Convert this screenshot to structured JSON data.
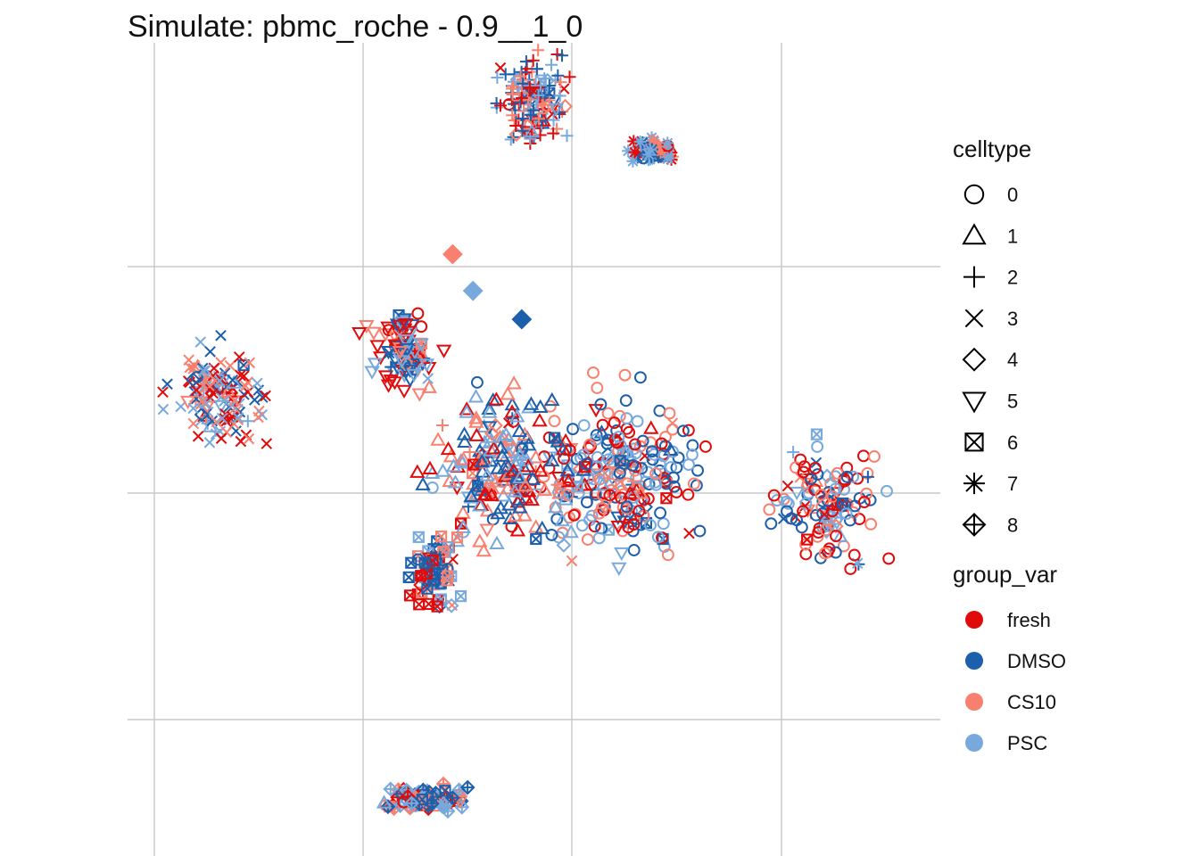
{
  "chart_data": {
    "type": "scatter",
    "title": "Simulate: pbmc_roche - 0.9__1_0",
    "xlabel": "",
    "ylabel": "",
    "grid": true,
    "axis_ticks_shown": false,
    "xlim": [
      0,
      10
    ],
    "ylim": [
      0,
      10
    ],
    "legend_placement": "right",
    "legends": [
      {
        "title": "celltype",
        "encoding": "shape",
        "entries": [
          {
            "label": "0",
            "shape": "circle"
          },
          {
            "label": "1",
            "shape": "triangle-up"
          },
          {
            "label": "2",
            "shape": "plus"
          },
          {
            "label": "3",
            "shape": "cross"
          },
          {
            "label": "4",
            "shape": "diamond"
          },
          {
            "label": "5",
            "shape": "triangle-down"
          },
          {
            "label": "6",
            "shape": "square-cross"
          },
          {
            "label": "7",
            "shape": "asterisk"
          },
          {
            "label": "8",
            "shape": "diamond-plus"
          }
        ]
      },
      {
        "title": "group_var",
        "encoding": "color",
        "entries": [
          {
            "label": "fresh",
            "color": "#E00B0B"
          },
          {
            "label": "DMSO",
            "color": "#1C5FAB"
          },
          {
            "label": "CS10",
            "color": "#F8806F"
          },
          {
            "label": "PSC",
            "color": "#78A9DC"
          }
        ]
      }
    ],
    "clusters": [
      {
        "celltype": "2",
        "center": [
          5.0,
          9.3
        ],
        "spread": [
          0.42,
          0.55
        ],
        "n": 150
      },
      {
        "celltype": "7",
        "center": [
          6.45,
          8.65
        ],
        "spread": [
          0.28,
          0.15
        ],
        "n": 55
      },
      {
        "celltype": "3",
        "center": [
          1.1,
          5.7
        ],
        "spread": [
          0.55,
          0.6
        ],
        "n": 130
      },
      {
        "celltype": "5",
        "center": [
          3.4,
          6.2
        ],
        "spread": [
          0.4,
          0.45
        ],
        "n": 100
      },
      {
        "celltype": "0",
        "center": [
          6.0,
          4.7
        ],
        "spread": [
          1.1,
          0.95
        ],
        "n": 260
      },
      {
        "celltype": "1",
        "center": [
          4.6,
          4.8
        ],
        "spread": [
          0.9,
          0.85
        ],
        "n": 180
      },
      {
        "celltype": "0",
        "center": [
          8.6,
          4.3
        ],
        "spread": [
          0.65,
          0.7
        ],
        "n": 120
      },
      {
        "celltype": "6",
        "center": [
          3.8,
          3.5
        ],
        "spread": [
          0.35,
          0.45
        ],
        "n": 70
      },
      {
        "celltype": "8",
        "center": [
          3.7,
          0.7
        ],
        "spread": [
          0.55,
          0.18
        ],
        "n": 80
      }
    ],
    "points": [
      {
        "x": 4.0,
        "y": 7.4,
        "celltype": "4",
        "group": "CS10"
      },
      {
        "x": 4.25,
        "y": 6.95,
        "celltype": "4",
        "group": "PSC"
      },
      {
        "x": 4.85,
        "y": 6.6,
        "celltype": "4",
        "group": "DMSO"
      }
    ]
  }
}
